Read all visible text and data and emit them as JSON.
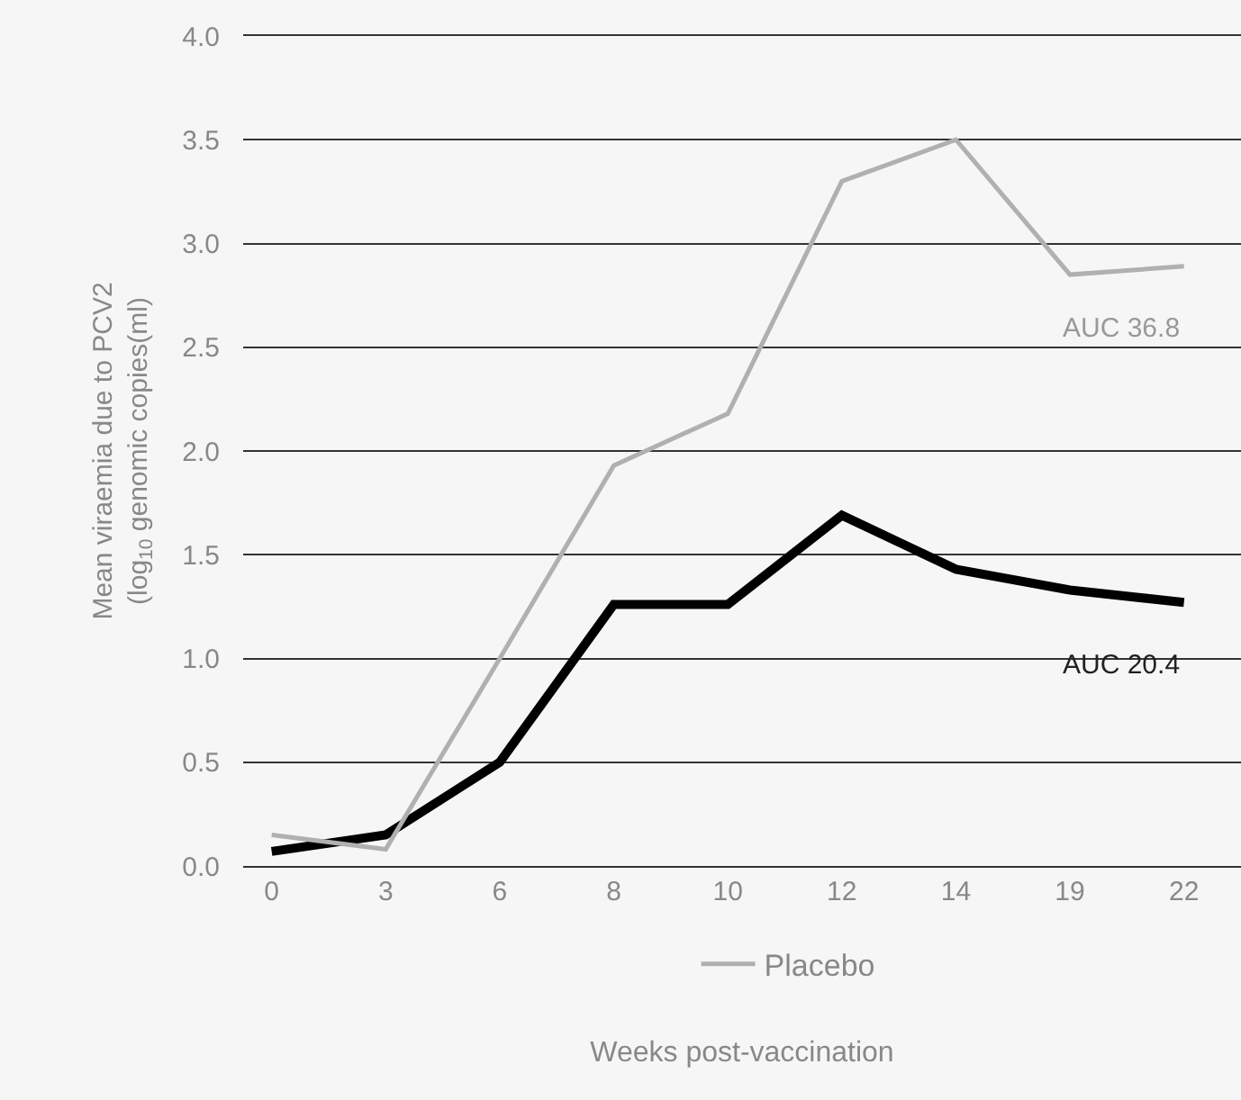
{
  "chart_data": {
    "type": "line",
    "xlabel": "Weeks post-vaccination",
    "ylabel": "Mean viraemia due to PCV2\n(log$_{10}$ genomic copies(ml)",
    "categories": [
      "0",
      "3",
      "6",
      "8",
      "10",
      "12",
      "14",
      "19",
      "22"
    ],
    "series": [
      {
        "color": "#000000",
        "values": [
          0.07,
          0.15,
          0.5,
          1.26,
          1.26,
          1.69,
          1.43,
          1.33,
          1.27
        ]
      },
      {
        "name": "Placebo",
        "color": "#b0b0b0",
        "values": [
          0.15,
          0.08,
          1.0,
          1.93,
          2.18,
          3.3,
          3.5,
          2.85,
          2.89
        ]
      }
    ],
    "ylim": [
      0,
      4
    ],
    "yticks": [
      {
        "value": 0,
        "label": "0.0"
      },
      {
        "value": 0.5,
        "label": "0.5"
      },
      {
        "value": 1,
        "label": "1.0"
      },
      {
        "value": 1.5,
        "label": "1.5"
      },
      {
        "value": 2,
        "label": "2.0"
      },
      {
        "value": 2.5,
        "label": "2.5"
      },
      {
        "value": 3,
        "label": "3.0"
      },
      {
        "value": 3.5,
        "label": "3.5"
      },
      {
        "value": 4,
        "label": "4.0"
      }
    ],
    "grid": "y",
    "legend": "bottom",
    "marker": "none",
    "line_style": "solid",
    "annotations": [
      "AUC 36.8",
      "AUC 20.4"
    ]
  }
}
